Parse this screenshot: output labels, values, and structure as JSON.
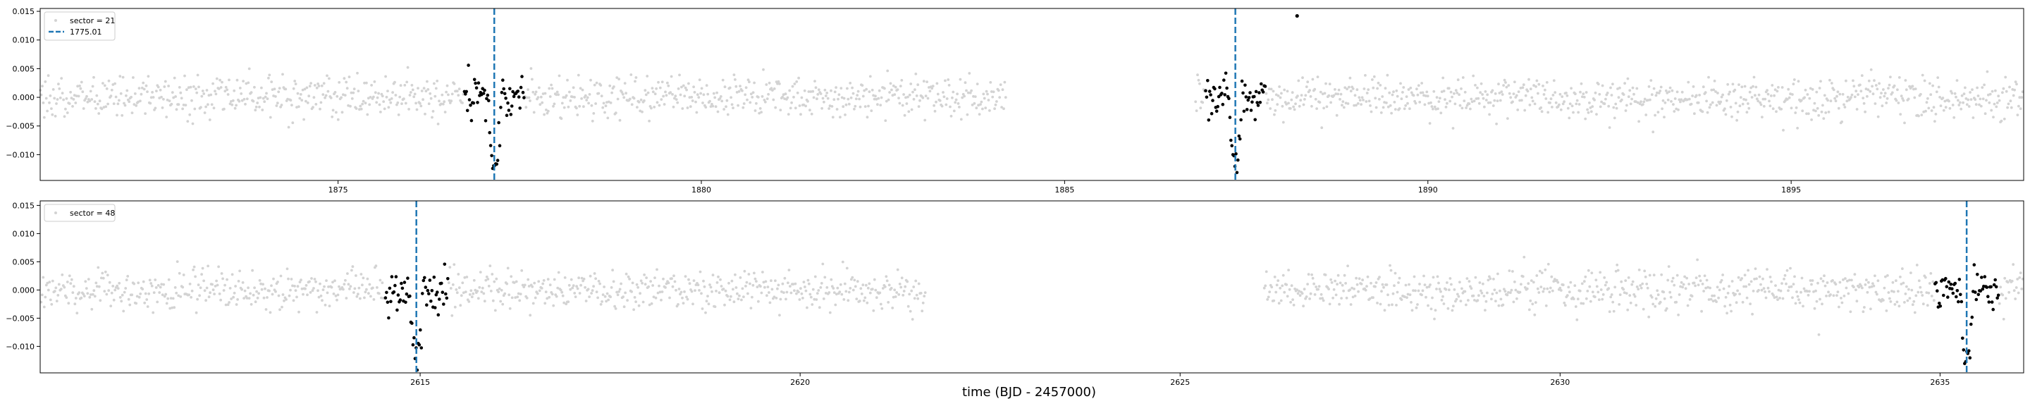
{
  "figure": {
    "xlabel": "time (BJD - 2457000)"
  },
  "chart_data": [
    {
      "type": "scatter",
      "panel": "top",
      "xlim": [
        1870.9,
        1898.2
      ],
      "ylim": [
        -0.0145,
        0.0155
      ],
      "xticks": [
        1875,
        1880,
        1885,
        1890,
        1895
      ],
      "yticks": [
        -0.01,
        -0.005,
        0.0,
        0.005,
        0.01,
        0.015
      ],
      "ytick_labels": [
        "−0.010",
        "−0.005",
        "0.000",
        "0.005",
        "0.010",
        "0.015"
      ],
      "segments": [
        [
          1870.9,
          1884.2
        ],
        [
          1886.8,
          1898.2
        ]
      ],
      "noise_sigma": 0.0018,
      "transits": [
        1877.15,
        1887.35
      ],
      "transit_depth": 0.0125,
      "transit_duration": 0.16,
      "highlight_halfwidth": 0.42,
      "outliers": [
        {
          "x": 1888.2,
          "y": 0.0142
        }
      ],
      "vlines": [
        1877.15,
        1887.35
      ],
      "legend": {
        "placement": "upper-left",
        "entries": [
          {
            "kind": "points",
            "label": "sector = 21"
          },
          {
            "kind": "dashed-line",
            "label": "1775.01"
          }
        ]
      },
      "colors": {
        "background_points": "#d3d3d3",
        "in_transit_points": "#000000",
        "vline": "#1f77b4"
      }
    },
    {
      "type": "scatter",
      "panel": "bottom",
      "xlim": [
        2610.0,
        2636.1
      ],
      "ylim": [
        -0.0147,
        0.0158
      ],
      "xticks": [
        2615,
        2620,
        2625,
        2630,
        2635
      ],
      "yticks": [
        -0.01,
        -0.005,
        0.0,
        0.005,
        0.01,
        0.015
      ],
      "ytick_labels": [
        "−0.010",
        "−0.005",
        "0.000",
        "0.005",
        "0.010",
        "0.015"
      ],
      "segments": [
        [
          2610.0,
          2621.65
        ],
        [
          2626.1,
          2636.1
        ]
      ],
      "noise_sigma": 0.0018,
      "transits": [
        2614.95,
        2635.35
      ],
      "transit_depth": 0.0125,
      "transit_duration": 0.16,
      "highlight_halfwidth": 0.42,
      "outliers": [],
      "vlines": [
        2614.95,
        2635.35
      ],
      "legend": {
        "placement": "upper-left",
        "entries": [
          {
            "kind": "points",
            "label": "sector = 48"
          }
        ]
      },
      "colors": {
        "background_points": "#d3d3d3",
        "in_transit_points": "#000000",
        "vline": "#1f77b4"
      }
    }
  ]
}
